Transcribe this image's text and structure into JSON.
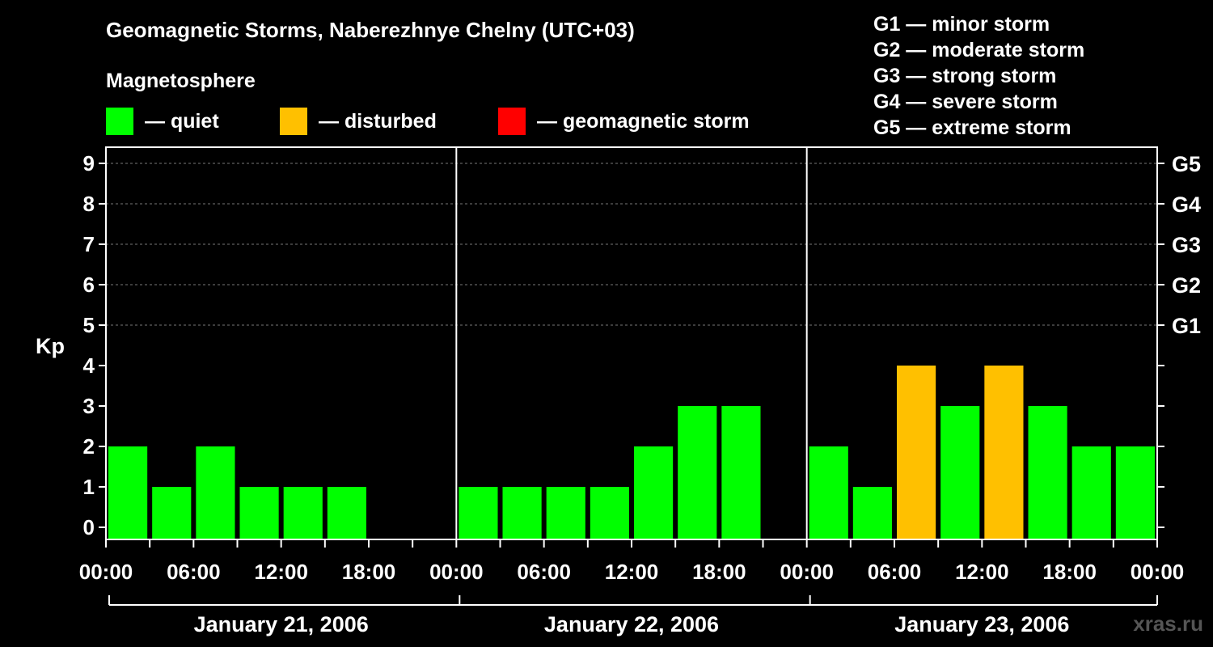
{
  "title": "Geomagnetic Storms, Naberezhnye Chelny (UTC+03)",
  "subtitle": "Magnetosphere",
  "legend": [
    {
      "label": "— quiet",
      "color": "#00ff00"
    },
    {
      "label": "— disturbed",
      "color": "#ffc000"
    },
    {
      "label": "— geomagnetic storm",
      "color": "#ff0000"
    }
  ],
  "storm_scale": [
    "G1 — minor storm",
    "G2 — moderate storm",
    "G3 — strong storm",
    "G4 — severe storm",
    "G5 — extreme storm"
  ],
  "watermark": "xras.ru",
  "chart_data": {
    "type": "bar",
    "ylabel": "Kp",
    "ylim": [
      0,
      9
    ],
    "y_ticks": [
      "0",
      "1",
      "2",
      "3",
      "4",
      "5",
      "6",
      "7",
      "8",
      "9"
    ],
    "right_ticks": [
      {
        "kp": 5,
        "label": "G1"
      },
      {
        "kp": 6,
        "label": "G2"
      },
      {
        "kp": 7,
        "label": "G3"
      },
      {
        "kp": 8,
        "label": "G4"
      },
      {
        "kp": 9,
        "label": "G5"
      }
    ],
    "grid": "dashed horizontal at Kp 5–9",
    "x_tick_labels": [
      "00:00",
      "06:00",
      "12:00",
      "18:00",
      "00:00",
      "06:00",
      "12:00",
      "18:00",
      "00:00",
      "06:00",
      "12:00",
      "18:00",
      "00:00"
    ],
    "days": [
      {
        "label": "January 21, 2006",
        "values": [
          2,
          1,
          2,
          1,
          1,
          1,
          null,
          null
        ]
      },
      {
        "label": "January 22, 2006",
        "values": [
          1,
          1,
          1,
          1,
          2,
          3,
          3,
          null
        ]
      },
      {
        "label": "January 23, 2006",
        "values": [
          2,
          1,
          4,
          3,
          4,
          3,
          2,
          2
        ]
      }
    ],
    "colors": {
      "quiet": "#00ff00",
      "disturbed": "#ffc000",
      "storm": "#ff0000"
    }
  }
}
